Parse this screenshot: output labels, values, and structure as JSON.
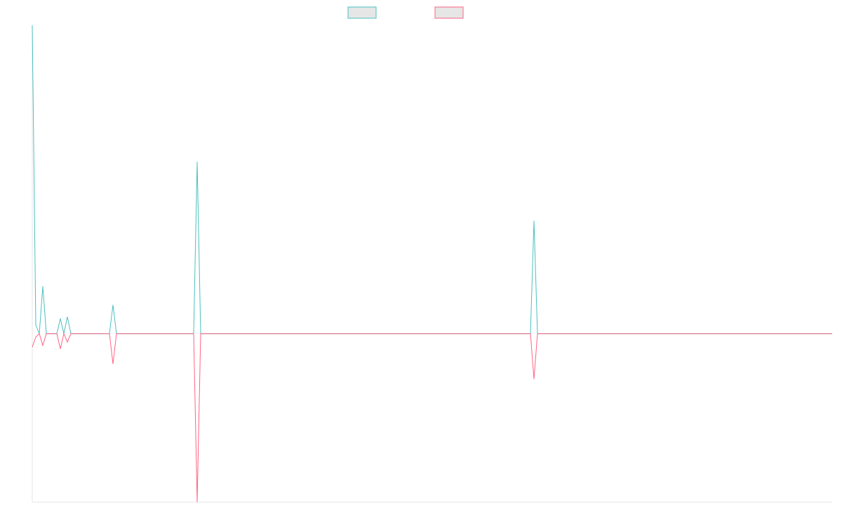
{
  "chart_data": {
    "type": "line",
    "x": [
      0,
      1,
      2,
      3,
      4,
      5,
      6,
      7,
      8,
      9,
      10,
      11,
      12,
      13,
      14,
      15,
      16,
      17,
      18,
      19,
      20,
      21,
      22,
      23,
      24,
      25,
      26,
      27,
      28,
      29,
      30,
      31,
      32,
      33,
      34,
      35,
      36,
      37,
      38,
      39,
      40,
      41,
      42,
      43,
      44,
      45,
      46,
      47,
      48,
      49,
      50,
      51,
      52,
      53,
      54,
      55,
      56,
      57,
      58,
      59,
      60,
      61,
      62,
      63,
      64,
      65,
      66,
      67,
      68,
      69,
      70,
      71,
      72,
      73,
      74,
      75,
      76,
      77,
      78,
      79,
      80,
      81,
      82,
      83,
      84,
      85,
      86,
      87,
      88,
      89,
      90,
      91,
      92,
      93,
      94,
      95,
      96,
      97,
      98,
      99,
      100,
      101,
      102,
      103,
      104,
      105,
      106,
      107,
      108,
      109,
      110,
      111,
      112,
      113,
      114,
      115,
      116,
      117,
      118,
      119,
      120,
      121,
      122,
      123,
      124,
      125,
      126,
      127,
      128,
      129,
      130,
      131,
      132,
      133,
      134,
      135,
      136,
      137,
      138,
      139,
      140,
      141,
      142,
      143,
      144,
      145,
      146,
      147,
      148,
      149,
      150,
      151,
      152,
      153,
      154,
      155,
      156,
      157,
      158,
      159,
      160,
      161,
      162,
      163,
      164,
      165,
      166,
      167,
      168,
      169,
      170,
      171,
      172,
      173,
      174,
      175,
      176,
      177,
      178,
      179,
      180,
      181,
      182,
      183,
      184,
      185,
      186,
      187,
      188,
      189,
      190,
      191,
      192,
      193,
      194,
      195,
      196,
      197,
      198,
      199,
      200,
      201,
      202,
      203,
      204,
      205,
      206,
      207,
      208,
      209,
      210,
      211,
      212,
      213,
      214,
      215,
      216,
      217,
      218,
      219,
      220,
      221,
      222,
      223,
      224,
      225,
      226,
      227,
      228
    ],
    "series": [
      {
        "color": "#4bc0c0",
        "fill": "#e6e6e6",
        "values": [
          1.83,
          0.05,
          0,
          0.28,
          0,
          0,
          0,
          0,
          0.09,
          0,
          0.1,
          0,
          0,
          0,
          0,
          0,
          0,
          0,
          0,
          0,
          0,
          0,
          0,
          0.17,
          0,
          0,
          0,
          0,
          0,
          0,
          0,
          0,
          0,
          0,
          0,
          0,
          0,
          0,
          0,
          0,
          0,
          0,
          0,
          0,
          0,
          0,
          0,
          1.02,
          0,
          0,
          0,
          0,
          0,
          0,
          0,
          0,
          0,
          0,
          0,
          0,
          0,
          0,
          0,
          0,
          0,
          0,
          0,
          0,
          0,
          0,
          0,
          0,
          0,
          0,
          0,
          0,
          0,
          0,
          0,
          0,
          0,
          0,
          0,
          0,
          0,
          0,
          0,
          0,
          0,
          0,
          0,
          0,
          0,
          0,
          0,
          0,
          0,
          0,
          0,
          0,
          0,
          0,
          0,
          0,
          0,
          0,
          0,
          0,
          0,
          0,
          0,
          0,
          0,
          0,
          0,
          0,
          0,
          0,
          0,
          0,
          0,
          0,
          0,
          0,
          0,
          0,
          0,
          0,
          0,
          0,
          0,
          0,
          0,
          0,
          0,
          0,
          0,
          0,
          0,
          0,
          0,
          0,
          0,
          0.67,
          0,
          0,
          0,
          0,
          0,
          0,
          0,
          0,
          0,
          0,
          0,
          0,
          0,
          0,
          0,
          0,
          0,
          0,
          0,
          0,
          0,
          0,
          0,
          0,
          0,
          0,
          0,
          0,
          0,
          0,
          0,
          0,
          0,
          0,
          0,
          0,
          0,
          0,
          0,
          0,
          0,
          0,
          0,
          0,
          0,
          0,
          0,
          0,
          0,
          0,
          0,
          0,
          0,
          0,
          0,
          0,
          0,
          0,
          0,
          0,
          0,
          0,
          0,
          0,
          0,
          0,
          0,
          0,
          0,
          0,
          0,
          0,
          0,
          0,
          0,
          0,
          0,
          0,
          0,
          0,
          0,
          0,
          0,
          0,
          0
        ]
      },
      {
        "color": "#ff6384",
        "fill": "#e6e6e6",
        "values": [
          -0.08,
          -0.02,
          0,
          -0.07,
          0,
          0,
          0,
          0,
          -0.09,
          0,
          -0.05,
          0,
          0,
          0,
          0,
          0,
          0,
          0,
          0,
          0,
          0,
          0,
          0,
          -0.18,
          0,
          0,
          0,
          0,
          0,
          0,
          0,
          0,
          0,
          0,
          0,
          0,
          0,
          0,
          0,
          0,
          0,
          0,
          0,
          0,
          0,
          0,
          0,
          -1.0,
          0,
          0,
          0,
          0,
          0,
          0,
          0,
          0,
          0,
          0,
          0,
          0,
          0,
          0,
          0,
          0,
          0,
          0,
          0,
          0,
          0,
          0,
          0,
          0,
          0,
          0,
          0,
          0,
          0,
          0,
          0,
          0,
          0,
          0,
          0,
          0,
          0,
          0,
          0,
          0,
          0,
          0,
          0,
          0,
          0,
          0,
          0,
          0,
          0,
          0,
          0,
          0,
          0,
          0,
          0,
          0,
          0,
          0,
          0,
          0,
          0,
          0,
          0,
          0,
          0,
          0,
          0,
          0,
          0,
          0,
          0,
          0,
          0,
          0,
          0,
          0,
          0,
          0,
          0,
          0,
          0,
          0,
          0,
          0,
          0,
          0,
          0,
          0,
          0,
          0,
          0,
          0,
          0,
          0,
          0,
          -0.27,
          0,
          0,
          0,
          0,
          0,
          0,
          0,
          0,
          0,
          0,
          0,
          0,
          0,
          0,
          0,
          0,
          0,
          0,
          0,
          0,
          0,
          0,
          0,
          0,
          0,
          0,
          0,
          0,
          0,
          0,
          0,
          0,
          0,
          0,
          0,
          0,
          0,
          0,
          0,
          0,
          0,
          0,
          0,
          0,
          0,
          0,
          0,
          0,
          0,
          0,
          0,
          0,
          0,
          0,
          0,
          0,
          0,
          0,
          0,
          0,
          0,
          0,
          0,
          0,
          0,
          0,
          0,
          0,
          0,
          0,
          0,
          0,
          0,
          0,
          0,
          0,
          0,
          0,
          0,
          0,
          0,
          0,
          0,
          0,
          0
        ]
      }
    ],
    "xlim": [
      0,
      228
    ],
    "ylim": [
      -1.0,
      1.83
    ],
    "grid": false,
    "legend_position": "top-center",
    "axis_color": "#e6e6e6"
  }
}
